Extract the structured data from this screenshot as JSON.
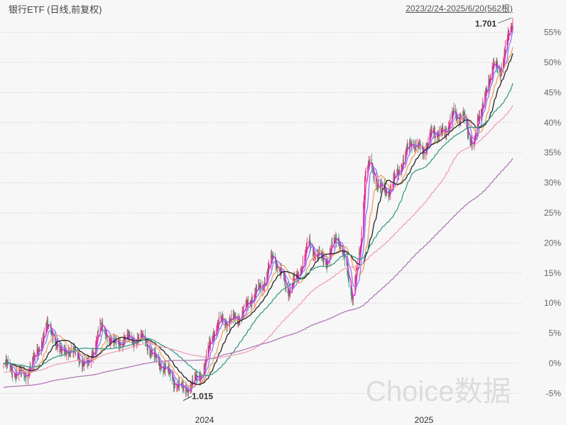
{
  "header": {
    "title": "银行ETF (日线,前复权)",
    "range": "2023/2/24-2025/6/20(562根)"
  },
  "watermark": "Choice数据",
  "chart_data": {
    "type": "candlestick",
    "title": "银行ETF (日线,前复权)",
    "x_range": [
      "2023-02-24",
      "2025-06-20"
    ],
    "bar_count": 562,
    "x_ticks": [
      {
        "date": "2024-01-02",
        "label": "2024"
      },
      {
        "date": "2025-01-02",
        "label": "2025"
      }
    ],
    "y_unit": "percent change",
    "y_ticks": [
      {
        "value": 55,
        "label": "55%"
      },
      {
        "value": 50,
        "label": "50%"
      },
      {
        "value": 45,
        "label": "45%"
      },
      {
        "value": 40,
        "label": "40%"
      },
      {
        "value": 35,
        "label": "35%"
      },
      {
        "value": 30,
        "label": "30%"
      },
      {
        "value": 25,
        "label": "25%"
      },
      {
        "value": 20,
        "label": "20%"
      },
      {
        "value": 15,
        "label": "15%"
      },
      {
        "value": 10,
        "label": "10%"
      },
      {
        "value": 5,
        "label": "5%"
      },
      {
        "value": 0,
        "label": "0%"
      },
      {
        "value": -5,
        "label": "-5%"
      }
    ],
    "ylim": [
      -6.5,
      58
    ],
    "grid": true,
    "annotations": {
      "max": {
        "label": "1.701",
        "date": "2025-06-20",
        "value": 57.5
      },
      "min": {
        "label": "1.015",
        "date": "2023-11-30",
        "value": -6.2
      }
    },
    "close_path": [
      [
        "2023-02-24",
        0
      ],
      [
        "2023-03-13",
        -1.5
      ],
      [
        "2023-03-29",
        -2
      ],
      [
        "2023-04-15",
        1
      ],
      [
        "2023-05-01",
        6
      ],
      [
        "2023-05-12",
        5
      ],
      [
        "2023-05-23",
        1.5
      ],
      [
        "2023-06-03",
        2.5
      ],
      [
        "2023-06-20",
        1
      ],
      [
        "2023-07-06",
        -0.5
      ],
      [
        "2023-07-23",
        6
      ],
      [
        "2023-08-03",
        5
      ],
      [
        "2023-08-14",
        3
      ],
      [
        "2023-08-30",
        4
      ],
      [
        "2023-09-16",
        4
      ],
      [
        "2023-10-02",
        4
      ],
      [
        "2023-10-14",
        1
      ],
      [
        "2023-10-30",
        -0.5
      ],
      [
        "2023-11-16",
        -3
      ],
      [
        "2023-11-30",
        -4.5
      ],
      [
        "2023-12-13",
        -3.5
      ],
      [
        "2023-12-30",
        -1.5
      ],
      [
        "2024-01-16",
        5
      ],
      [
        "2024-01-28",
        7
      ],
      [
        "2024-02-15",
        7
      ],
      [
        "2024-03-04",
        8
      ],
      [
        "2024-03-21",
        11
      ],
      [
        "2024-04-08",
        13
      ],
      [
        "2024-04-26",
        18
      ],
      [
        "2024-05-08",
        15
      ],
      [
        "2024-05-20",
        12
      ],
      [
        "2024-06-06",
        14.5
      ],
      [
        "2024-06-24",
        20
      ],
      [
        "2024-07-06",
        18
      ],
      [
        "2024-07-24",
        17
      ],
      [
        "2024-08-11",
        21.5
      ],
      [
        "2024-08-26",
        15.5
      ],
      [
        "2024-09-05",
        11
      ],
      [
        "2024-09-18",
        19
      ],
      [
        "2024-09-26",
        32
      ],
      [
        "2024-10-05",
        33
      ],
      [
        "2024-10-15",
        30
      ],
      [
        "2024-10-28",
        28.5
      ],
      [
        "2024-11-07",
        29
      ],
      [
        "2024-11-25",
        33
      ],
      [
        "2024-12-13",
        37
      ],
      [
        "2024-12-31",
        35
      ],
      [
        "2025-01-19",
        38.5
      ],
      [
        "2025-02-08",
        38
      ],
      [
        "2025-02-28",
        41.5
      ],
      [
        "2025-03-20",
        40.5
      ],
      [
        "2025-04-07",
        35.5
      ],
      [
        "2025-04-15",
        41
      ],
      [
        "2025-04-29",
        44
      ],
      [
        "2025-05-13",
        50
      ],
      [
        "2025-05-26",
        48
      ],
      [
        "2025-06-04",
        51.5
      ],
      [
        "2025-06-20",
        57
      ]
    ],
    "moving_averages": [
      {
        "period": 5,
        "color": "#d81bd8"
      },
      {
        "period": 10,
        "color": "#8a7cf0"
      },
      {
        "period": 20,
        "color": "#f0a060"
      },
      {
        "period": 30,
        "color": "#222222"
      },
      {
        "period": 60,
        "color": "#3a9a8a"
      },
      {
        "period": 120,
        "color": "#f0a0b8"
      },
      {
        "period": 250,
        "color": "#b07ab8"
      }
    ],
    "colors": {
      "up": "#e0306a",
      "down": "#3a9a70",
      "negative_label": "#5cc87a"
    }
  }
}
